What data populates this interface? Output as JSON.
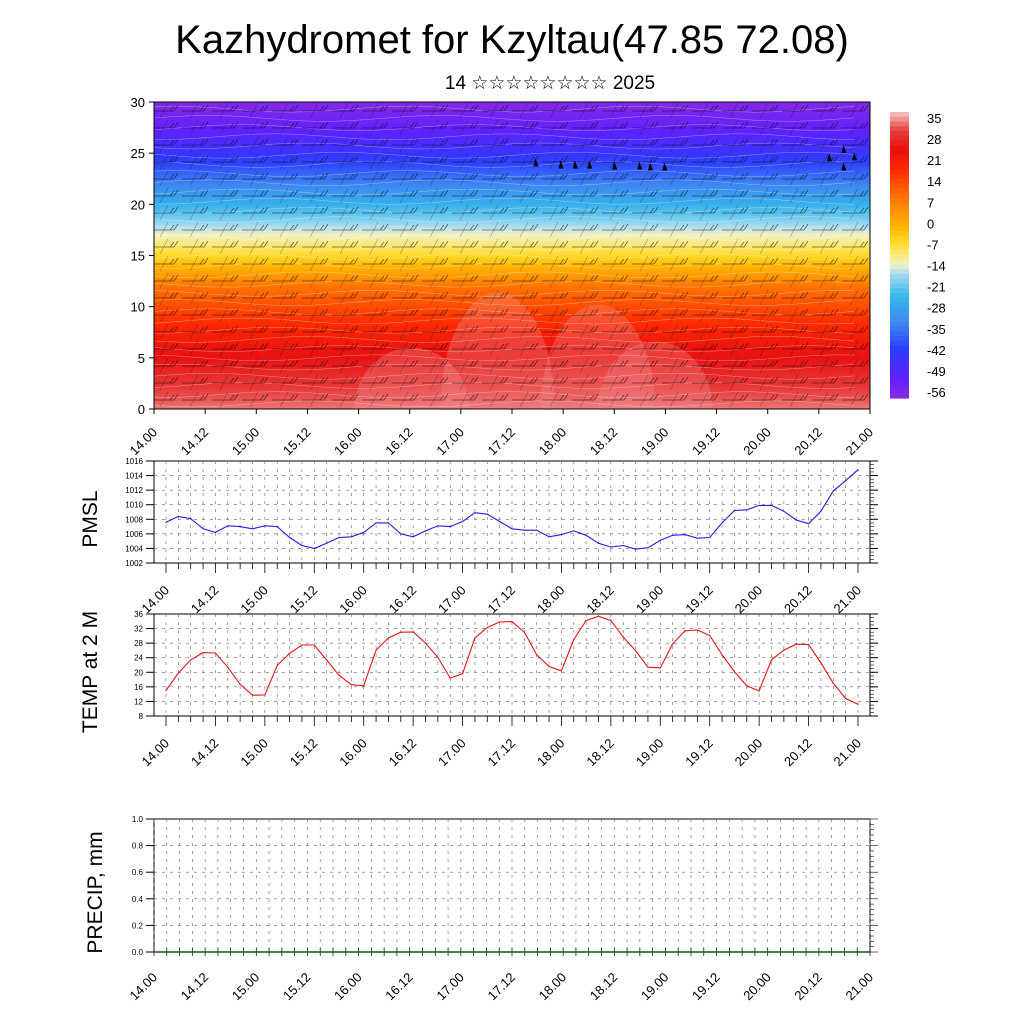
{
  "header": {
    "title": "Kazhydromet for Kzyltau(47.85 72.08)",
    "subtitle": "14 ☆☆☆☆☆☆☆☆ 2025"
  },
  "time_ticks": [
    "14.00",
    "14.12",
    "15.00",
    "15.12",
    "16.00",
    "16.12",
    "17.00",
    "17.12",
    "18.00",
    "18.12",
    "19.00",
    "19.12",
    "20.00",
    "20.12",
    "21.00"
  ],
  "colors": {
    "pmsl_line": "#1f1fe0",
    "temp_line": "#e01818",
    "axis": "#000000",
    "grid": "#666666"
  },
  "chart_data": [
    {
      "type": "heatmap",
      "name": "cross-section",
      "ylim": [
        0,
        30
      ],
      "yticks": [
        "0",
        "5",
        "10",
        "15",
        "20",
        "25",
        "30"
      ],
      "x_range": [
        "14.00",
        "21.00"
      ],
      "colorbar": {
        "labels": [
          "35",
          "28",
          "21",
          "14",
          "7",
          "0",
          "-7",
          "-14",
          "-21",
          "-28",
          "-35",
          "-42",
          "-49",
          "-56"
        ],
        "range": [
          -63,
          42
        ],
        "stops": [
          {
            "value": -63,
            "color": "#8a2be2"
          },
          {
            "value": -56,
            "color": "#6020ff"
          },
          {
            "value": -45,
            "color": "#2b3cff"
          },
          {
            "value": -35,
            "color": "#3f8cf0"
          },
          {
            "value": -26,
            "color": "#33b6ea"
          },
          {
            "value": -18,
            "color": "#9dd9f2"
          },
          {
            "value": -14,
            "color": "#f3f0c6"
          },
          {
            "value": -7,
            "color": "#ffe033"
          },
          {
            "value": 0,
            "color": "#ffb400"
          },
          {
            "value": 7,
            "color": "#ff8a00"
          },
          {
            "value": 14,
            "color": "#ff5a00"
          },
          {
            "value": 21,
            "color": "#ff2a00"
          },
          {
            "value": 28,
            "color": "#e80f0f"
          },
          {
            "value": 35,
            "color": "#e83a3a"
          },
          {
            "value": 42,
            "color": "#f5c8c8"
          }
        ]
      }
    },
    {
      "type": "line",
      "name": "pmsl",
      "ylabel": "PMSL",
      "ylim": [
        1002,
        1016
      ],
      "yticks": [
        "1002",
        "1004",
        "1006",
        "1008",
        "1010",
        "1012",
        "1014",
        "1016"
      ],
      "x_range": [
        "14.00",
        "21.00"
      ],
      "values": [
        1007.6,
        1008.4,
        1008.1,
        1006.7,
        1006.2,
        1007.1,
        1007.0,
        1006.7,
        1007.1,
        1007.0,
        1005.5,
        1004.4,
        1004.0,
        1004.7,
        1005.5,
        1005.6,
        1006.2,
        1007.5,
        1007.5,
        1006.0,
        1005.6,
        1006.4,
        1007.1,
        1007.0,
        1007.7,
        1008.9,
        1008.7,
        1007.7,
        1006.7,
        1006.5,
        1006.5,
        1005.6,
        1005.9,
        1006.4,
        1005.8,
        1004.7,
        1004.2,
        1004.4,
        1003.9,
        1004.1,
        1005.1,
        1005.8,
        1005.9,
        1005.4,
        1005.5,
        1007.5,
        1009.2,
        1009.3,
        1009.9,
        1009.9,
        1009.1,
        1007.9,
        1007.4,
        1009.1,
        1011.9,
        1013.3,
        1014.8
      ]
    },
    {
      "type": "line",
      "name": "temp",
      "ylabel": "TEMP at 2 M",
      "ylim": [
        8,
        36
      ],
      "yticks": [
        "8",
        "12",
        "16",
        "20",
        "24",
        "28",
        "32",
        "36"
      ],
      "x_range": [
        "14.00",
        "21.00"
      ],
      "values": [
        15.0,
        19.8,
        23.4,
        25.4,
        25.3,
        21.4,
        16.7,
        13.7,
        13.8,
        21.9,
        25.2,
        27.5,
        27.5,
        23.4,
        19.2,
        16.6,
        16.3,
        26.1,
        29.4,
        31.0,
        31.1,
        28.0,
        24.1,
        18.4,
        19.6,
        29.4,
        32.3,
        33.8,
        33.9,
        31.0,
        24.8,
        21.6,
        20.4,
        29.0,
        34.2,
        35.4,
        34.2,
        29.7,
        25.9,
        21.4,
        21.2,
        27.8,
        31.4,
        31.6,
        30.1,
        24.8,
        20.2,
        16.3,
        14.9,
        23.4,
        26.1,
        27.7,
        27.6,
        22.6,
        17.0,
        12.8,
        11.2
      ]
    },
    {
      "type": "bar",
      "name": "precip",
      "ylabel": "PRECIP, mm",
      "ylim": [
        0,
        1.0
      ],
      "yticks": [
        "0.0",
        "0.2",
        "0.4",
        "0.6",
        "0.8",
        "1.0"
      ],
      "x_range": [
        "14.00",
        "21.00"
      ],
      "values": []
    }
  ]
}
